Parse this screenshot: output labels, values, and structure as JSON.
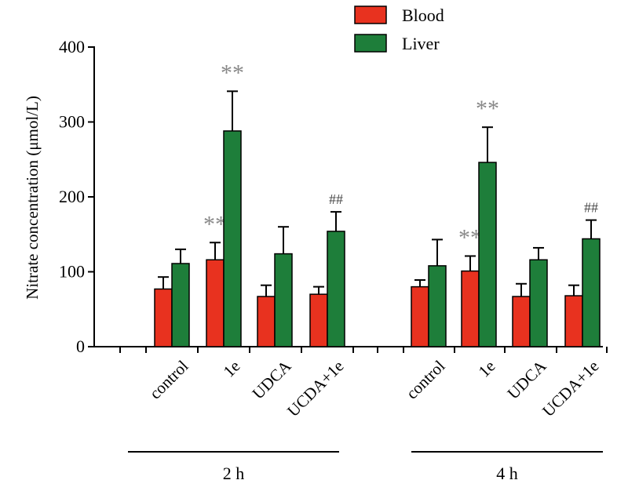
{
  "chart_data": {
    "type": "bar",
    "title": "",
    "xlabel": "",
    "ylabel": "Nitrate concentration (μmol/L)",
    "ylim": [
      0,
      400
    ],
    "yticks": [
      0,
      100,
      200,
      300,
      400
    ],
    "legend": {
      "position": "top-center"
    },
    "colors": {
      "Blood": "#e8321f",
      "Liver": "#1e7e3a"
    },
    "groups": [
      {
        "label": "2 h",
        "categories": [
          "control",
          "1e",
          "UDCA",
          "UCDA+1e"
        ],
        "series": [
          {
            "name": "Blood",
            "values": [
              77,
              116,
              67,
              70
            ],
            "errors": [
              16,
              23,
              15,
              10
            ],
            "annotations": [
              "",
              "**",
              "",
              ""
            ]
          },
          {
            "name": "Liver",
            "values": [
              111,
              288,
              124,
              154
            ],
            "errors": [
              19,
              53,
              36,
              26
            ],
            "annotations": [
              "",
              "**",
              "",
              "##"
            ]
          }
        ]
      },
      {
        "label": "4 h",
        "categories": [
          "control",
          "1e",
          "UDCA",
          "UCDA+1e"
        ],
        "series": [
          {
            "name": "Blood",
            "values": [
              80,
              101,
              67,
              68
            ],
            "errors": [
              9,
              20,
              17,
              14
            ],
            "annotations": [
              "",
              "**",
              "",
              ""
            ]
          },
          {
            "name": "Liver",
            "values": [
              108,
              246,
              116,
              144
            ],
            "errors": [
              35,
              47,
              16,
              25
            ],
            "annotations": [
              "",
              "**",
              "",
              "##"
            ]
          }
        ]
      }
    ]
  }
}
